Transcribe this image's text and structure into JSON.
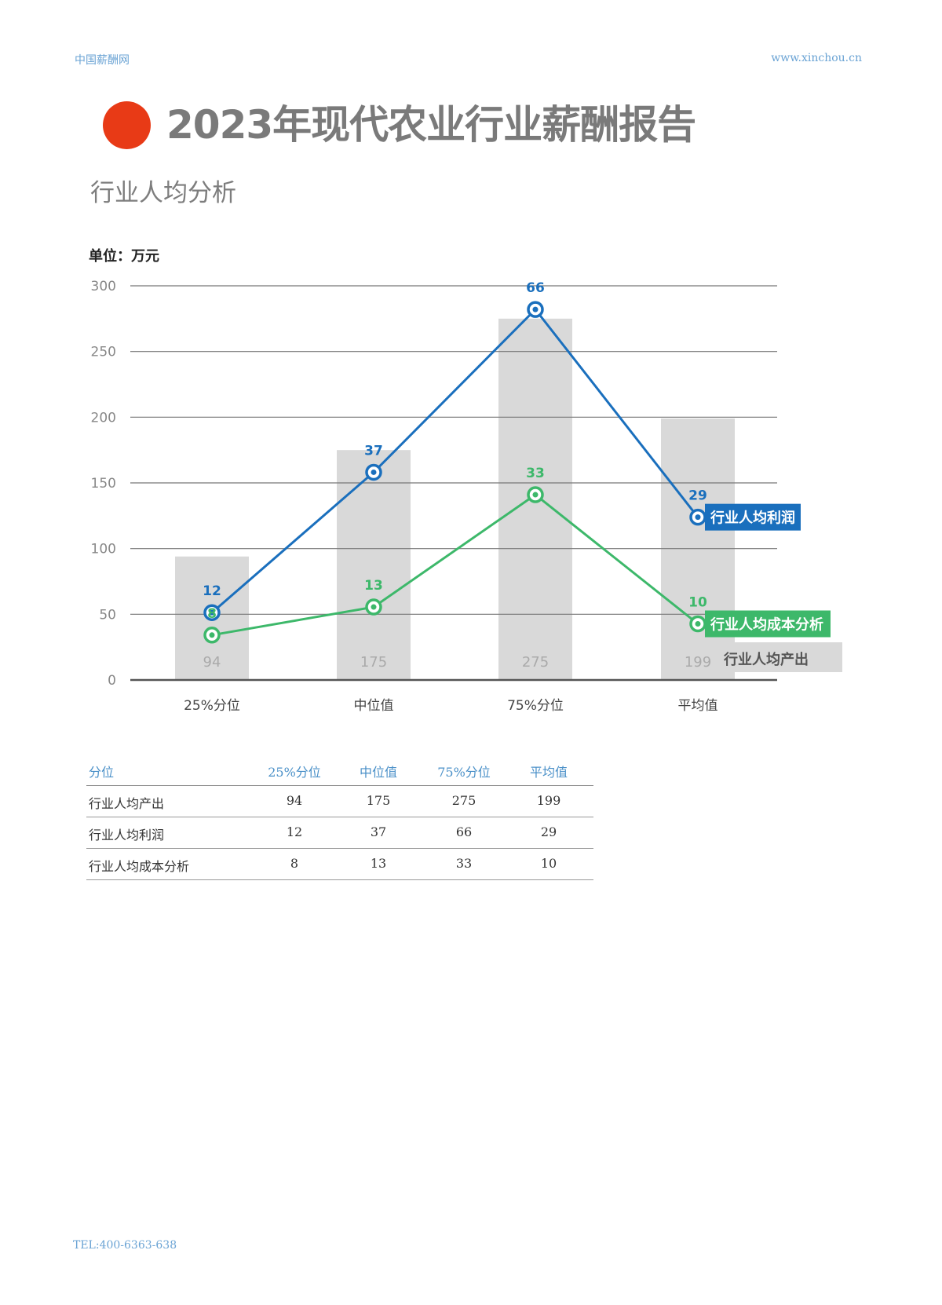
{
  "header": {
    "left": "中国薪酬网",
    "right": "www.xinchou.cn"
  },
  "title": "2023年现代农业行业薪酬报告",
  "subtitle": "行业人均分析",
  "unit_label": "单位：万元",
  "colors": {
    "accent_dot": "#e83a16",
    "profit": "#1a6fbd",
    "cost": "#3db86a",
    "output_bar": "#d9d9d9",
    "header_text": "#6aa3d4"
  },
  "chart_data": {
    "type": "bar+line",
    "categories": [
      "25%分位",
      "中位值",
      "75%分位",
      "平均值"
    ],
    "yticks": [
      0,
      50,
      100,
      150,
      200,
      250,
      300
    ],
    "ylim": [
      0,
      300
    ],
    "ylabel": "万元",
    "series": [
      {
        "name": "行业人均产出",
        "type": "bar",
        "values": [
          94,
          175,
          275,
          199
        ]
      },
      {
        "name": "行业人均利润",
        "type": "line",
        "values": [
          12,
          37,
          66,
          29
        ]
      },
      {
        "name": "行业人均成本分析",
        "type": "line",
        "values": [
          8,
          13,
          33,
          10
        ]
      }
    ],
    "legend": [
      "行业人均利润",
      "行业人均成本分析",
      "行业人均产出"
    ],
    "grid": true
  },
  "table": {
    "headers": [
      "分位",
      "25%分位",
      "中位值",
      "75%分位",
      "平均值"
    ],
    "rows": [
      {
        "label": "行业人均产出",
        "values": [
          "94",
          "175",
          "275",
          "199"
        ]
      },
      {
        "label": "行业人均利润",
        "values": [
          "12",
          "37",
          "66",
          "29"
        ]
      },
      {
        "label": "行业人均成本分析",
        "values": [
          "8",
          "13",
          "33",
          "10"
        ]
      }
    ]
  },
  "footer": {
    "tel": "TEL:400-6363-638"
  }
}
